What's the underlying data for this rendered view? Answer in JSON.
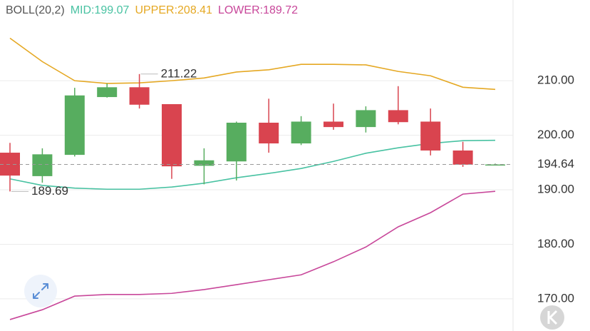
{
  "chart_data": {
    "type": "candlestick",
    "title": "BOLL(20,2)",
    "categories": [
      null,
      null,
      null,
      null,
      null,
      null,
      null,
      null,
      null,
      null,
      null,
      null,
      null,
      null,
      null,
      null
    ],
    "open": [
      196.8,
      192.5,
      196.4,
      207.0,
      208.8,
      205.7,
      194.4,
      195.2,
      202.3,
      198.5,
      202.5,
      201.5,
      204.6,
      202.5,
      197.2,
      194.64
    ],
    "high": [
      198.6,
      197.6,
      208.7,
      209.5,
      211.22,
      205.7,
      197.6,
      202.5,
      206.7,
      203.5,
      205.8,
      205.3,
      209.0,
      204.9,
      198.8,
      194.8
    ],
    "low": [
      189.69,
      191.3,
      196.1,
      206.9,
      204.9,
      192.0,
      191.0,
      191.7,
      196.8,
      198.2,
      201.0,
      200.5,
      202.0,
      196.3,
      194.2,
      194.5
    ],
    "close": [
      192.6,
      196.5,
      207.3,
      208.8,
      205.6,
      194.3,
      195.4,
      202.3,
      198.5,
      202.5,
      201.5,
      204.6,
      202.4,
      197.2,
      194.6,
      194.64
    ],
    "up_color": "#57ad5f",
    "down_color": "#d9444f",
    "series": [
      {
        "name": "MID:",
        "color": "#48c2a2",
        "values": [
          192.0,
          190.8,
          190.3,
          190.1,
          190.1,
          190.5,
          191.2,
          192.2,
          193.0,
          193.9,
          195.2,
          196.7,
          197.7,
          198.5,
          199.0,
          199.07
        ]
      },
      {
        "name": "UPPER:",
        "color": "#e5a823",
        "values": [
          217.8,
          213.5,
          210.0,
          209.5,
          209.6,
          210.0,
          210.5,
          211.6,
          212.0,
          213.0,
          213.0,
          212.9,
          211.7,
          210.9,
          208.8,
          208.41
        ]
      },
      {
        "name": "LOWER:",
        "color": "#c8479a",
        "values": [
          166.2,
          168.0,
          170.5,
          170.8,
          170.8,
          171.0,
          171.7,
          172.6,
          173.5,
          174.4,
          176.8,
          179.5,
          183.2,
          185.8,
          189.2,
          189.72
        ]
      }
    ],
    "ylim": [
      164.1,
      224.8
    ],
    "yticks": [
      {
        "value": 170,
        "label": "170.00"
      },
      {
        "value": 180,
        "label": "180.00"
      },
      {
        "value": 190,
        "label": "190.00"
      },
      {
        "value": 200,
        "label": "200.00"
      },
      {
        "value": 210,
        "label": "210.00"
      }
    ],
    "grid": true,
    "price_line": true
  }
}
